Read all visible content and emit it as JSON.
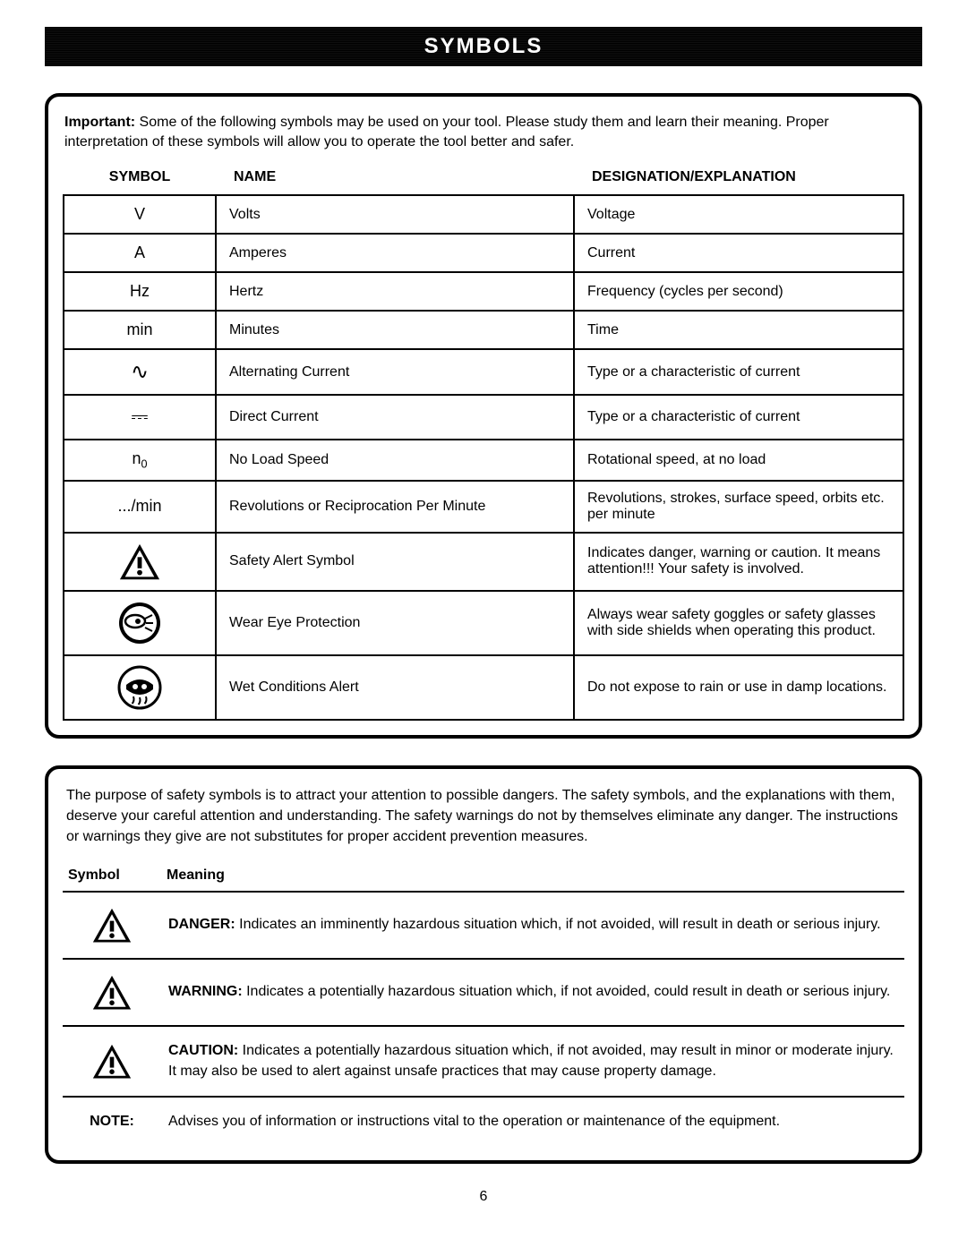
{
  "title": "SYMBOLS",
  "important_label": "Important:",
  "important_text": " Some of the following symbols may be used on your tool. Please study them and learn their meaning. Proper interpretation of these symbols will allow you to operate the tool better and safer.",
  "headers": {
    "symbol": "SYMBOL",
    "name": "NAME",
    "explanation": "DESIGNATION/EXPLANATION"
  },
  "rows": [
    {
      "sym": "V",
      "name": "Volts",
      "exp": "Voltage"
    },
    {
      "sym": "A",
      "name": "Amperes",
      "exp": "Current"
    },
    {
      "sym": "Hz",
      "name": "Hertz",
      "exp": "Frequency (cycles per second)"
    },
    {
      "sym": "min",
      "name": "Minutes",
      "exp": "Time"
    },
    {
      "sym": "∿",
      "name": "Alternating Current",
      "exp": "Type or a characteristic of current"
    },
    {
      "sym": "⎓",
      "name": "Direct Current",
      "exp": "Type or a characteristic of current"
    },
    {
      "sym": "n₀",
      "name": "No Load Speed",
      "exp": "Rotational speed, at no load"
    },
    {
      "sym": ".../min",
      "name": "Revolutions or Reciprocation Per Minute",
      "exp": "Revolutions, strokes, surface speed, orbits etc. per minute"
    },
    {
      "sym": "icon:alert",
      "name": "Safety Alert Symbol",
      "exp": "Indicates danger, warning or caution. It means attention!!! Your safety is involved."
    },
    {
      "sym": "icon:eye",
      "name": "Wear Eye Protection",
      "exp": "Always wear safety goggles or safety glasses with side shields when operating this product."
    },
    {
      "sym": "icon:wet",
      "name": "Wet Conditions Alert",
      "exp": "Do not expose to rain or use in damp locations."
    }
  ],
  "purpose_text": "The purpose of safety symbols is to attract your attention to possible dangers. The safety symbols, and the explanations with them, deserve your careful attention and understanding. The safety warnings do not by themselves eliminate any danger. The instructions or warnings they give are not substitutes for proper accident prevention measures.",
  "meaning_headers": {
    "symbol": "Symbol",
    "meaning": "Meaning"
  },
  "meanings": [
    {
      "icon": "alert",
      "label": "DANGER:",
      "text": " Indicates an imminently hazardous situation which, if not avoided, will result in death or serious injury."
    },
    {
      "icon": "alert",
      "label": "WARNING:",
      "text": " Indicates a potentially hazardous situation which, if not avoided, could result in death or serious injury."
    },
    {
      "icon": "alert",
      "label": "CAUTION:",
      "text": " Indicates a potentially hazardous situation which, if not avoided, may result in minor or moderate injury. It may also be used to alert against unsafe practices that may cause property damage."
    },
    {
      "icon": "text:NOTE:",
      "label": "",
      "text": "Advises you of information or instructions vital to the operation or maintenance of the equipment."
    }
  ],
  "page_number": "6"
}
